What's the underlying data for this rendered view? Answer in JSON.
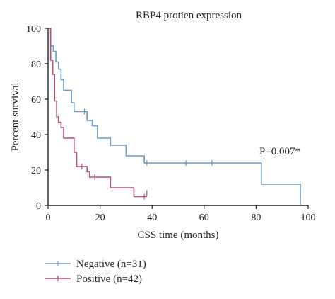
{
  "chart_data": {
    "type": "line",
    "subtype": "kaplan-meier step curve",
    "title": "RBP4 protien expression",
    "xlabel": "CSS time (months)",
    "ylabel": "Percent survival",
    "xlim": [
      0,
      100
    ],
    "ylim": [
      0,
      100
    ],
    "xticks": [
      0,
      20,
      40,
      60,
      80,
      100
    ],
    "yticks": [
      0,
      20,
      40,
      60,
      80,
      100
    ],
    "grid": false,
    "legend_position": "bottom-left",
    "annotation": "P=0.007*",
    "series": [
      {
        "name": "Negative (n=31)",
        "color": "#6a9cc7",
        "steps": [
          [
            0,
            100
          ],
          [
            1,
            90
          ],
          [
            2,
            87
          ],
          [
            3,
            81
          ],
          [
            4,
            77
          ],
          [
            5,
            71
          ],
          [
            6,
            65
          ],
          [
            9,
            58
          ],
          [
            10,
            53
          ],
          [
            15,
            48
          ],
          [
            17,
            45
          ],
          [
            19,
            38
          ],
          [
            24,
            34
          ],
          [
            30,
            28
          ],
          [
            37,
            24
          ],
          [
            82,
            12
          ],
          [
            97,
            0
          ]
        ],
        "censored": [
          [
            14,
            53
          ],
          [
            38,
            24
          ],
          [
            53,
            24
          ],
          [
            63,
            24
          ]
        ]
      },
      {
        "name": "Positive (n=42)",
        "color": "#b84d83",
        "steps": [
          [
            0,
            100
          ],
          [
            1,
            82
          ],
          [
            1.8,
            74
          ],
          [
            2.5,
            59
          ],
          [
            3.3,
            50
          ],
          [
            4,
            47
          ],
          [
            5,
            44
          ],
          [
            6,
            38
          ],
          [
            10,
            30
          ],
          [
            11,
            22
          ],
          [
            15,
            19
          ],
          [
            16,
            16
          ],
          [
            24,
            10
          ],
          [
            33,
            5
          ],
          [
            38,
            5
          ]
        ],
        "censored": [
          [
            13,
            22
          ],
          [
            18,
            16
          ],
          [
            37,
            5
          ],
          [
            38,
            7
          ]
        ]
      }
    ]
  }
}
